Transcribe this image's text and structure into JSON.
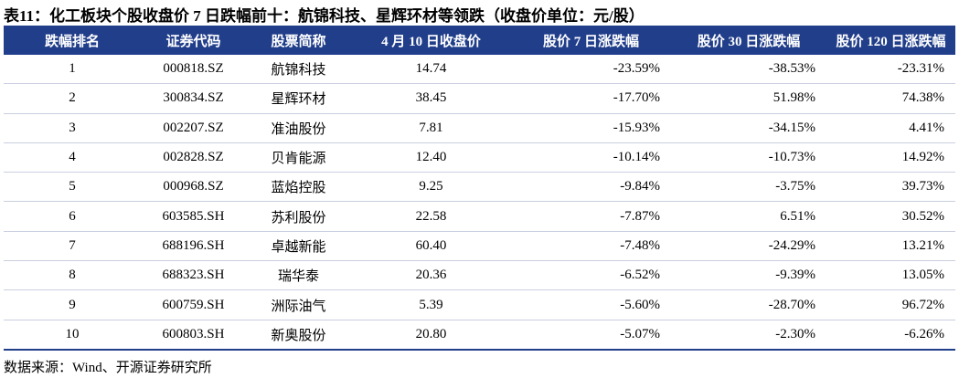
{
  "title": "表11：化工板块个股收盘价 7 日跌幅前十：航锦科技、星辉环材等领跌（收盘价单位：元/股）",
  "table": {
    "header": [
      "跌幅排名",
      "证券代码",
      "股票简称",
      "4 月 10 日收盘价",
      "股价 7 日涨跌幅",
      "股价 30 日涨跌幅",
      "股价 120 日涨跌幅"
    ],
    "rows": [
      [
        "1",
        "000818.SZ",
        "航锦科技",
        "14.74",
        "-23.59%",
        "-38.53%",
        "-23.31%"
      ],
      [
        "2",
        "300834.SZ",
        "星辉环材",
        "38.45",
        "-17.70%",
        "51.98%",
        "74.38%"
      ],
      [
        "3",
        "002207.SZ",
        "准油股份",
        "7.81",
        "-15.93%",
        "-34.15%",
        "4.41%"
      ],
      [
        "4",
        "002828.SZ",
        "贝肯能源",
        "12.40",
        "-10.14%",
        "-10.73%",
        "14.92%"
      ],
      [
        "5",
        "000968.SZ",
        "蓝焰控股",
        "9.25",
        "-9.84%",
        "-3.75%",
        "39.73%"
      ],
      [
        "6",
        "603585.SH",
        "苏利股份",
        "22.58",
        "-7.87%",
        "6.51%",
        "30.52%"
      ],
      [
        "7",
        "688196.SH",
        "卓越新能",
        "60.40",
        "-7.48%",
        "-24.29%",
        "13.21%"
      ],
      [
        "8",
        "688323.SH",
        "瑞华泰",
        "20.36",
        "-6.52%",
        "-9.39%",
        "13.05%"
      ],
      [
        "9",
        "600759.SH",
        "洲际油气",
        "5.39",
        "-5.60%",
        "-28.70%",
        "96.72%"
      ],
      [
        "10",
        "600803.SH",
        "新奥股份",
        "20.80",
        "-5.07%",
        "-2.30%",
        "-6.26%"
      ]
    ]
  },
  "source": "数据来源：Wind、开源证券研究所"
}
